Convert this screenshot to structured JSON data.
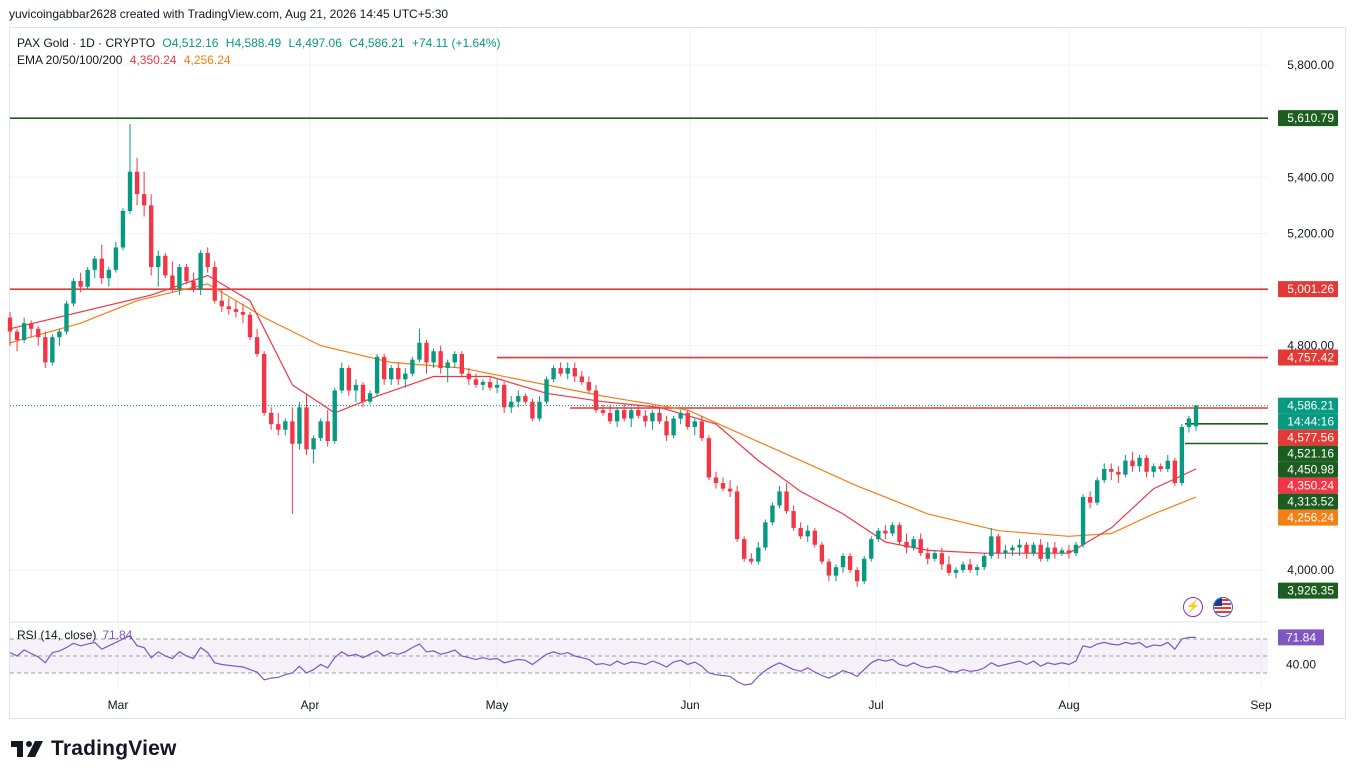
{
  "header": {
    "credit": "yuvicoingabbar2628 created with TradingView.com, Aug 21, 2026 14:45 UTC+5:30"
  },
  "legend": {
    "symbol": "PAX Gold · 1D · CRYPTO",
    "open": "O4,512.16",
    "high": "H4,588.49",
    "low": "L4,497.06",
    "close": "C4,586.21",
    "change": "+74.11 (+1.64%)",
    "ema_label": "EMA 20/50/100/200",
    "ema1": "4,350.24",
    "ema2": "4,256.24"
  },
  "rsi_legend": {
    "label": "RSI (14, close)",
    "value": "71.84"
  },
  "branding": {
    "name": "TradingView"
  },
  "colors": {
    "up": "#089981",
    "down": "#f23645",
    "ema20": "#f23645",
    "ema50": "#f57f17",
    "support": "#1b5e20",
    "resistance": "#e53935",
    "rsi": "#7e57c2",
    "grid": "#f0f3fa"
  },
  "icons": {
    "alert": "lightning-icon",
    "flag": "us-flag-icon"
  },
  "chart_data": {
    "type": "candlestick",
    "title": "PAX Gold · 1D · CRYPTO",
    "x_labels": [
      "Mar",
      "Apr",
      "May",
      "Jun",
      "Jul",
      "Aug",
      "Sep"
    ],
    "y_ticks": [
      "5,800.00",
      "5,400.00",
      "5,200.00",
      "4,800.00",
      "4,000.00"
    ],
    "ylim": [
      3900,
      5950
    ],
    "horizontal_levels": [
      {
        "value": "5,610.79",
        "color": "#1b5e20",
        "span": "full"
      },
      {
        "value": "5,001.26",
        "color": "#e53935",
        "span": "full"
      },
      {
        "value": "4,757.42",
        "color": "#e53935",
        "span": "from-may"
      },
      {
        "value": "4,577.56",
        "color": "#e53935",
        "span": "from-mid-may"
      },
      {
        "value": "4,521.16",
        "color": "#1b5e20",
        "span": "short"
      },
      {
        "value": "4,450.98",
        "color": "#1b5e20",
        "span": "short"
      }
    ],
    "axis_badges": [
      {
        "text": "4,586.21",
        "bg": "#089981"
      },
      {
        "text": "14:44:16",
        "bg": "#089981"
      },
      {
        "text": "4,577.56",
        "bg": "#e53935"
      },
      {
        "text": "4,521.16",
        "bg": "#1b5e20"
      },
      {
        "text": "4,450.98",
        "bg": "#1b5e20"
      },
      {
        "text": "4,350.24",
        "bg": "#f23645"
      },
      {
        "text": "4,313.52",
        "bg": "#1b5e20"
      },
      {
        "text": "4,256.24",
        "bg": "#f57f17"
      },
      {
        "text": "3,926.35",
        "bg": "#1b5e20"
      }
    ],
    "candles": [
      [
        4900,
        4920,
        4800,
        4850
      ],
      [
        4850,
        4860,
        4780,
        4820
      ],
      [
        4820,
        4900,
        4810,
        4880
      ],
      [
        4880,
        4890,
        4830,
        4860
      ],
      [
        4860,
        4870,
        4800,
        4830
      ],
      [
        4830,
        4850,
        4720,
        4740
      ],
      [
        4740,
        4840,
        4730,
        4830
      ],
      [
        4830,
        4860,
        4800,
        4850
      ],
      [
        4850,
        4960,
        4840,
        4950
      ],
      [
        4950,
        5040,
        4940,
        5030
      ],
      [
        5030,
        5060,
        4990,
        5010
      ],
      [
        5010,
        5080,
        5000,
        5070
      ],
      [
        5070,
        5120,
        5040,
        5110
      ],
      [
        5110,
        5160,
        5020,
        5040
      ],
      [
        5040,
        5080,
        5010,
        5070
      ],
      [
        5070,
        5170,
        5060,
        5150
      ],
      [
        5150,
        5290,
        5140,
        5280
      ],
      [
        5280,
        5590,
        5270,
        5420
      ],
      [
        5420,
        5470,
        5300,
        5340
      ],
      [
        5340,
        5420,
        5260,
        5300
      ],
      [
        5300,
        5340,
        5050,
        5080
      ],
      [
        5080,
        5140,
        5010,
        5120
      ],
      [
        5120,
        5130,
        5040,
        5050
      ],
      [
        5050,
        5100,
        4990,
        5000
      ],
      [
        5000,
        5090,
        4980,
        5080
      ],
      [
        5080,
        5090,
        5020,
        5030
      ],
      [
        5030,
        5060,
        4990,
        5000
      ],
      [
        5000,
        5140,
        4980,
        5130
      ],
      [
        5130,
        5150,
        5060,
        5080
      ],
      [
        5080,
        5100,
        4950,
        4960
      ],
      [
        4960,
        5000,
        4920,
        4940
      ],
      [
        4940,
        4970,
        4910,
        4930
      ],
      [
        4930,
        4960,
        4900,
        4920
      ],
      [
        4920,
        4950,
        4880,
        4910
      ],
      [
        4910,
        4920,
        4820,
        4830
      ],
      [
        4830,
        4860,
        4760,
        4770
      ],
      [
        4770,
        4780,
        4550,
        4560
      ],
      [
        4560,
        4580,
        4500,
        4520
      ],
      [
        4520,
        4560,
        4480,
        4500
      ],
      [
        4500,
        4540,
        4480,
        4530
      ],
      [
        4530,
        4580,
        4200,
        4450
      ],
      [
        4450,
        4600,
        4430,
        4580
      ],
      [
        4580,
        4630,
        4410,
        4430
      ],
      [
        4430,
        4480,
        4380,
        4470
      ],
      [
        4470,
        4540,
        4460,
        4530
      ],
      [
        4530,
        4570,
        4440,
        4460
      ],
      [
        4460,
        4650,
        4450,
        4640
      ],
      [
        4640,
        4740,
        4630,
        4720
      ],
      [
        4720,
        4730,
        4620,
        4640
      ],
      [
        4640,
        4680,
        4600,
        4660
      ],
      [
        4660,
        4670,
        4580,
        4600
      ],
      [
        4600,
        4640,
        4590,
        4630
      ],
      [
        4630,
        4770,
        4620,
        4760
      ],
      [
        4760,
        4770,
        4660,
        4680
      ],
      [
        4680,
        4730,
        4660,
        4720
      ],
      [
        4720,
        4740,
        4660,
        4680
      ],
      [
        4680,
        4720,
        4650,
        4700
      ],
      [
        4700,
        4760,
        4690,
        4750
      ],
      [
        4750,
        4860,
        4740,
        4810
      ],
      [
        4810,
        4820,
        4700,
        4740
      ],
      [
        4740,
        4790,
        4720,
        4780
      ],
      [
        4780,
        4800,
        4700,
        4720
      ],
      [
        4720,
        4750,
        4670,
        4740
      ],
      [
        4740,
        4780,
        4720,
        4770
      ],
      [
        4770,
        4780,
        4690,
        4700
      ],
      [
        4700,
        4720,
        4660,
        4680
      ],
      [
        4680,
        4700,
        4650,
        4660
      ],
      [
        4660,
        4680,
        4640,
        4670
      ],
      [
        4670,
        4690,
        4640,
        4650
      ],
      [
        4650,
        4680,
        4630,
        4660
      ],
      [
        4660,
        4670,
        4560,
        4580
      ],
      [
        4580,
        4620,
        4560,
        4600
      ],
      [
        4600,
        4640,
        4580,
        4620
      ],
      [
        4620,
        4630,
        4590,
        4600
      ],
      [
        4600,
        4610,
        4530,
        4540
      ],
      [
        4540,
        4620,
        4530,
        4600
      ],
      [
        4600,
        4690,
        4590,
        4680
      ],
      [
        4680,
        4730,
        4670,
        4720
      ],
      [
        4720,
        4740,
        4690,
        4700
      ],
      [
        4700,
        4740,
        4680,
        4720
      ],
      [
        4720,
        4740,
        4670,
        4690
      ],
      [
        4690,
        4710,
        4660,
        4670
      ],
      [
        4670,
        4690,
        4630,
        4640
      ],
      [
        4640,
        4660,
        4560,
        4570
      ],
      [
        4570,
        4590,
        4550,
        4560
      ],
      [
        4560,
        4590,
        4520,
        4530
      ],
      [
        4530,
        4580,
        4510,
        4570
      ],
      [
        4570,
        4590,
        4530,
        4540
      ],
      [
        4540,
        4580,
        4510,
        4570
      ],
      [
        4570,
        4590,
        4540,
        4550
      ],
      [
        4550,
        4570,
        4510,
        4530
      ],
      [
        4530,
        4570,
        4500,
        4560
      ],
      [
        4560,
        4580,
        4520,
        4530
      ],
      [
        4530,
        4550,
        4460,
        4480
      ],
      [
        4480,
        4550,
        4470,
        4540
      ],
      [
        4540,
        4570,
        4520,
        4560
      ],
      [
        4560,
        4570,
        4500,
        4510
      ],
      [
        4510,
        4540,
        4480,
        4530
      ],
      [
        4530,
        4550,
        4460,
        4470
      ],
      [
        4470,
        4480,
        4320,
        4330
      ],
      [
        4330,
        4350,
        4290,
        4310
      ],
      [
        4310,
        4330,
        4280,
        4290
      ],
      [
        4290,
        4320,
        4260,
        4280
      ],
      [
        4280,
        4300,
        4100,
        4110
      ],
      [
        4110,
        4120,
        4030,
        4040
      ],
      [
        4040,
        4060,
        4020,
        4030
      ],
      [
        4030,
        4100,
        4020,
        4080
      ],
      [
        4080,
        4180,
        4070,
        4170
      ],
      [
        4170,
        4240,
        4160,
        4230
      ],
      [
        4230,
        4300,
        4220,
        4280
      ],
      [
        4280,
        4310,
        4200,
        4210
      ],
      [
        4210,
        4230,
        4140,
        4150
      ],
      [
        4150,
        4170,
        4110,
        4120
      ],
      [
        4120,
        4160,
        4100,
        4140
      ],
      [
        4140,
        4150,
        4080,
        4090
      ],
      [
        4090,
        4100,
        4020,
        4030
      ],
      [
        4030,
        4040,
        3960,
        3980
      ],
      [
        3980,
        4020,
        3960,
        4010
      ],
      [
        4010,
        4060,
        3990,
        4050
      ],
      [
        4050,
        4060,
        3990,
        4000
      ],
      [
        4000,
        4010,
        3940,
        3960
      ],
      [
        3960,
        4050,
        3950,
        4040
      ],
      [
        4040,
        4120,
        4030,
        4110
      ],
      [
        4110,
        4150,
        4100,
        4140
      ],
      [
        4140,
        4160,
        4110,
        4130
      ],
      [
        4130,
        4170,
        4120,
        4160
      ],
      [
        4160,
        4170,
        4090,
        4100
      ],
      [
        4100,
        4130,
        4060,
        4080
      ],
      [
        4080,
        4120,
        4070,
        4110
      ],
      [
        4110,
        4130,
        4050,
        4060
      ],
      [
        4060,
        4080,
        4020,
        4040
      ],
      [
        4040,
        4070,
        4030,
        4060
      ],
      [
        4060,
        4080,
        4000,
        4020
      ],
      [
        4020,
        4050,
        3980,
        3990
      ],
      [
        3990,
        4010,
        3970,
        4000
      ],
      [
        4000,
        4030,
        3990,
        4020
      ],
      [
        4020,
        4040,
        3990,
        4000
      ],
      [
        4000,
        4020,
        3980,
        4010
      ],
      [
        4010,
        4060,
        4000,
        4050
      ],
      [
        4050,
        4150,
        4040,
        4120
      ],
      [
        4120,
        4130,
        4040,
        4060
      ],
      [
        4060,
        4090,
        4040,
        4070
      ],
      [
        4070,
        4090,
        4050,
        4080
      ],
      [
        4080,
        4110,
        4050,
        4090
      ],
      [
        4090,
        4100,
        4040,
        4060
      ],
      [
        4060,
        4100,
        4050,
        4090
      ],
      [
        4090,
        4110,
        4030,
        4040
      ],
      [
        4040,
        4100,
        4030,
        4080
      ],
      [
        4080,
        4100,
        4040,
        4060
      ],
      [
        4060,
        4080,
        4050,
        4070
      ],
      [
        4070,
        4090,
        4040,
        4060
      ],
      [
        4060,
        4100,
        4050,
        4090
      ],
      [
        4090,
        4270,
        4080,
        4260
      ],
      [
        4260,
        4280,
        4220,
        4240
      ],
      [
        4240,
        4330,
        4230,
        4320
      ],
      [
        4320,
        4380,
        4310,
        4360
      ],
      [
        4360,
        4380,
        4320,
        4350
      ],
      [
        4350,
        4370,
        4310,
        4340
      ],
      [
        4340,
        4410,
        4330,
        4390
      ],
      [
        4390,
        4420,
        4350,
        4370
      ],
      [
        4370,
        4410,
        4350,
        4400
      ],
      [
        4400,
        4410,
        4330,
        4350
      ],
      [
        4350,
        4380,
        4330,
        4370
      ],
      [
        4370,
        4380,
        4350,
        4360
      ],
      [
        4360,
        4410,
        4350,
        4390
      ],
      [
        4390,
        4400,
        4300,
        4310
      ],
      [
        4310,
        4520,
        4300,
        4510
      ],
      [
        4510,
        4550,
        4490,
        4540
      ],
      [
        4512.16,
        4588.49,
        4497.06,
        4586.21
      ]
    ],
    "ema20": [
      [
        0,
        4860
      ],
      [
        20,
        4980
      ],
      [
        28,
        5050
      ],
      [
        34,
        4960
      ],
      [
        40,
        4660
      ],
      [
        46,
        4560
      ],
      [
        52,
        4620
      ],
      [
        60,
        4690
      ],
      [
        68,
        4690
      ],
      [
        76,
        4630
      ],
      [
        84,
        4600
      ],
      [
        92,
        4580
      ],
      [
        100,
        4520
      ],
      [
        106,
        4390
      ],
      [
        112,
        4280
      ],
      [
        118,
        4200
      ],
      [
        124,
        4100
      ],
      [
        130,
        4070
      ],
      [
        138,
        4060
      ],
      [
        146,
        4060
      ],
      [
        150,
        4060
      ],
      [
        156,
        4150
      ],
      [
        162,
        4290
      ],
      [
        168,
        4360
      ]
    ],
    "ema50": [
      [
        0,
        4810
      ],
      [
        10,
        4880
      ],
      [
        18,
        4960
      ],
      [
        28,
        5020
      ],
      [
        36,
        4900
      ],
      [
        44,
        4800
      ],
      [
        54,
        4740
      ],
      [
        64,
        4720
      ],
      [
        74,
        4670
      ],
      [
        84,
        4620
      ],
      [
        96,
        4570
      ],
      [
        104,
        4480
      ],
      [
        112,
        4390
      ],
      [
        120,
        4300
      ],
      [
        130,
        4200
      ],
      [
        140,
        4140
      ],
      [
        150,
        4120
      ],
      [
        156,
        4130
      ],
      [
        162,
        4200
      ],
      [
        168,
        4260
      ]
    ],
    "rsi": {
      "upper": 70,
      "lower": 30,
      "tick": "40.00",
      "values": [
        54,
        50,
        57,
        53,
        49,
        42,
        54,
        56,
        60,
        65,
        62,
        64,
        66,
        58,
        62,
        66,
        70,
        74,
        62,
        60,
        48,
        55,
        50,
        47,
        55,
        50,
        47,
        60,
        54,
        42,
        40,
        39,
        38,
        37,
        34,
        31,
        22,
        24,
        25,
        28,
        30,
        38,
        30,
        34,
        40,
        36,
        48,
        55,
        50,
        52,
        48,
        52,
        56,
        50,
        54,
        52,
        55,
        60,
        64,
        55,
        56,
        52,
        54,
        57,
        50,
        48,
        46,
        48,
        46,
        47,
        42,
        44,
        46,
        45,
        40,
        46,
        52,
        55,
        52,
        54,
        50,
        48,
        46,
        40,
        41,
        39,
        44,
        40,
        43,
        42,
        40,
        44,
        41,
        37,
        43,
        45,
        40,
        43,
        38,
        30,
        28,
        27,
        26,
        20,
        16,
        17,
        26,
        33,
        38,
        42,
        38,
        34,
        32,
        36,
        31,
        27,
        24,
        28,
        33,
        30,
        26,
        34,
        42,
        46,
        44,
        46,
        40,
        38,
        42,
        38,
        36,
        38,
        36,
        32,
        31,
        34,
        32,
        33,
        36,
        42,
        38,
        40,
        42,
        44,
        40,
        44,
        38,
        42,
        40,
        42,
        40,
        44,
        62,
        60,
        64,
        66,
        64,
        63,
        66,
        64,
        66,
        60,
        63,
        62,
        66,
        58,
        70,
        72,
        71.84
      ]
    }
  }
}
